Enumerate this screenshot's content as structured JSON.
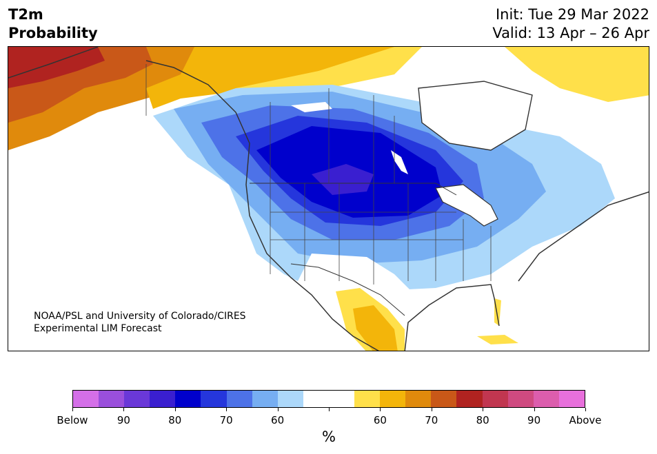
{
  "header": {
    "title_line1": "T2m",
    "title_line2": "Probability",
    "init": "Init: Tue 29 Mar 2022",
    "valid": "Valid: 13 Apr – 26 Apr"
  },
  "credit": {
    "line1": "NOAA/PSL and University of Colorado/CIRES",
    "line2": "Experimental LIM Forecast"
  },
  "colorbar": {
    "colors": [
      "#d46fe8",
      "#9a4fdc",
      "#6a38d8",
      "#3a1fd0",
      "#0000cc",
      "#2536dc",
      "#4d72e8",
      "#76aef2",
      "#acd8fa",
      "#ffffff",
      "#ffffff",
      "#ffe04a",
      "#f3b50a",
      "#e08a0c",
      "#c95818",
      "#b02320",
      "#c13650",
      "#cf4a80",
      "#dc5dad",
      "#e870dc"
    ],
    "labels": [
      "Below",
      "90",
      "80",
      "70",
      "60",
      "60",
      "70",
      "80",
      "90",
      "Above"
    ],
    "unit": "%"
  },
  "map": {
    "land_color": "#ffffff",
    "border_color": "#333333",
    "water_color": "#ffffff"
  }
}
